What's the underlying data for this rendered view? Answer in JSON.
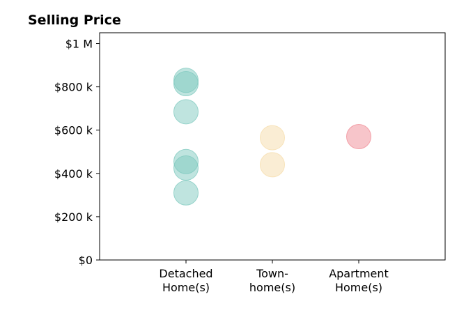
{
  "chart_data": {
    "type": "scatter",
    "title": "Selling Price",
    "xlabel": "",
    "ylabel": "",
    "categories": [
      [
        "Detached",
        "Home(s)"
      ],
      [
        "Town-",
        "home(s)"
      ],
      [
        "Apartment",
        "Home(s)"
      ]
    ],
    "xlim": [
      0,
      4
    ],
    "ylim": [
      0,
      1050000
    ],
    "yticks": [
      0,
      200000,
      400000,
      600000,
      800000,
      1000000
    ],
    "ytick_labels": [
      "$0",
      "$200 k",
      "$400 k",
      "$600 k",
      "$800 k",
      "$1 M"
    ],
    "grid": false,
    "series": [
      {
        "category": 0,
        "color": "#7fc9bf",
        "values": [
          830000,
          815000,
          685000,
          455000,
          425000,
          310000
        ]
      },
      {
        "category": 1,
        "color": "#f5dcaa",
        "values": [
          565000,
          440000
        ]
      },
      {
        "category": 2,
        "color": "#f08c96",
        "values": [
          570000
        ]
      }
    ]
  }
}
